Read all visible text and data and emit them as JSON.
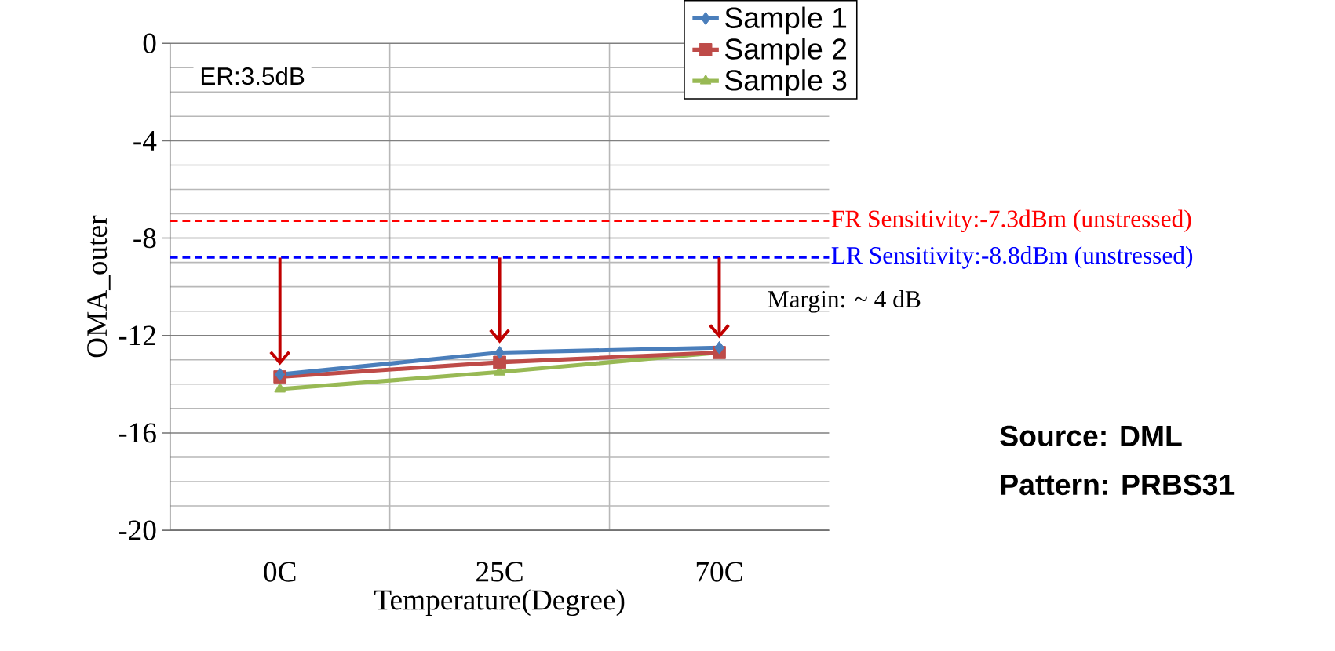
{
  "chart_data": {
    "type": "line",
    "xlabel": "Temperature(Degree)",
    "ylabel": "OMA_outer",
    "categories": [
      "0C",
      "25C",
      "70C"
    ],
    "series": [
      {
        "name": "Sample 1",
        "color": "#4a7ebb",
        "marker": "diamond",
        "values": [
          -13.6,
          -12.7,
          -12.5
        ]
      },
      {
        "name": "Sample 2",
        "color": "#be4b48",
        "marker": "square",
        "values": [
          -13.7,
          -13.1,
          -12.7
        ]
      },
      {
        "name": "Sample 3",
        "color": "#98b954",
        "marker": "triangle",
        "values": [
          -14.2,
          -13.5,
          -12.7
        ]
      }
    ],
    "ylim": [
      -20,
      0
    ],
    "yticks": [
      -20,
      -16,
      -12,
      -8,
      -4,
      0
    ],
    "grid": true,
    "legend": "top right",
    "ref_lines": [
      {
        "axis": "y",
        "value": -7.3,
        "label": "FR Sensitivity:-7.3dBm (unstressed)",
        "color": "#ff0000",
        "line_style": "dashed"
      },
      {
        "axis": "y",
        "value": -8.8,
        "label": "LR Sensitivity:-8.8dBm (unstressed)",
        "color": "#0000ff",
        "line_style": "dashed"
      }
    ],
    "annotations": [
      "ER:3.5dB",
      "Margin: ~ 4 dB",
      "Source: DML",
      "Pattern: PRBS31"
    ]
  }
}
